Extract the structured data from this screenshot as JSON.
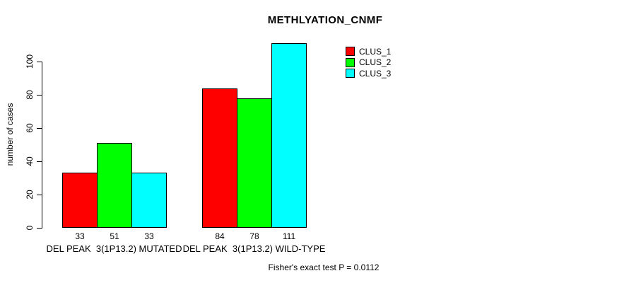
{
  "chart_data": {
    "type": "bar",
    "title": "METHLYATION_CNMF",
    "xlabel": "",
    "ylabel": "number of cases",
    "ylim": [
      0,
      111
    ],
    "yticks": [
      0,
      20,
      40,
      60,
      80,
      100
    ],
    "grid": false,
    "legend_position": "top-right",
    "categories": [
      "DEL PEAK  3(1P13.2) MUTATED",
      "DEL PEAK  3(1P13.2) WILD-TYPE"
    ],
    "series": [
      {
        "name": "CLUS_1",
        "color": "#ff0000",
        "values": [
          33,
          84
        ]
      },
      {
        "name": "CLUS_2",
        "color": "#00ff00",
        "values": [
          51,
          78
        ]
      },
      {
        "name": "CLUS_3",
        "color": "#00ffff",
        "values": [
          33,
          111
        ]
      }
    ],
    "bar_value_labels": [
      [
        33,
        51,
        33
      ],
      [
        84,
        78,
        111
      ]
    ],
    "annotation": "Fisher's exact test P = 0.0112"
  },
  "colors": {
    "background": "#ffffff",
    "axis": "#000000",
    "text": "#000000",
    "clus_1": "#ff0000",
    "clus_2": "#00ff00",
    "clus_3": "#00ffff"
  }
}
